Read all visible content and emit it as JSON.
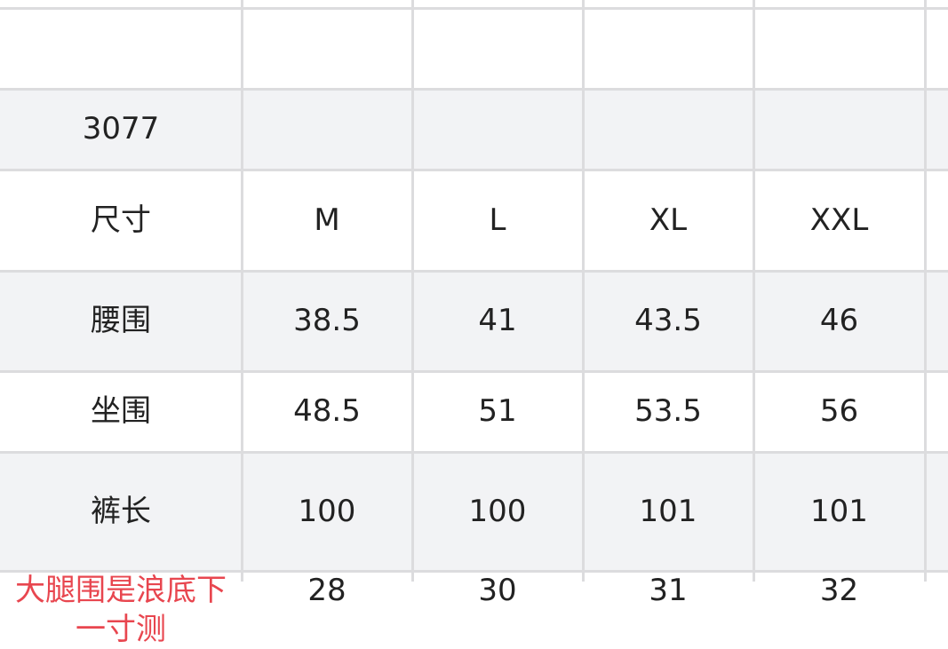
{
  "table": {
    "model": "3077",
    "header": {
      "label": "尺寸",
      "sizes": [
        "M",
        "L",
        "XL",
        "XXL"
      ]
    },
    "rows": [
      {
        "label": "腰围",
        "values": [
          "38.5",
          "41",
          "43.5",
          "46"
        ]
      },
      {
        "label": "坐围",
        "values": [
          "48.5",
          "51",
          "53.5",
          "56"
        ]
      },
      {
        "label": "裤长",
        "values": [
          "100",
          "100",
          "101",
          "101"
        ]
      },
      {
        "label": "大腿围是浪底下一寸测",
        "label_color": "#e8464f",
        "values": [
          "28",
          "30",
          "31",
          "32"
        ]
      }
    ]
  }
}
